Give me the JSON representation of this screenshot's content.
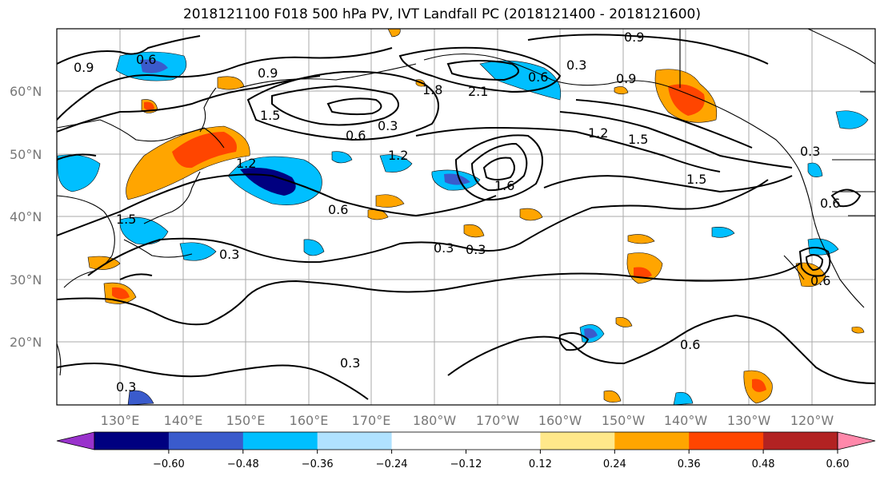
{
  "title": "2018121100 F018 500 hPa PV, IVT Landfall PC (2018121400 - 2018121600)",
  "lat_labels": [
    "60°N",
    "50°N",
    "40°N",
    "30°N",
    "20°N"
  ],
  "lon_labels": [
    "130°E",
    "140°E",
    "150°E",
    "160°E",
    "170°E",
    "180°W",
    "170°W",
    "160°W",
    "150°W",
    "140°W",
    "130°W",
    "120°W"
  ],
  "colorbar": {
    "colors": [
      "#9932cc",
      "#000080",
      "#3a5bcc",
      "#00bfff",
      "#b0e2ff",
      "#ffffff",
      "#ffffff",
      "#ffe88a",
      "#ffa500",
      "#ff4500",
      "#b22222",
      "#ff88aa"
    ],
    "ticks": [
      "−0.60",
      "−0.48",
      "−0.36",
      "−0.24",
      "−0.12",
      "0.12",
      "0.24",
      "0.36",
      "0.48",
      "0.60"
    ]
  },
  "contour_labels": [
    "0.9",
    "0.6",
    "0.9",
    "1.5",
    "0.3",
    "0.6",
    "0.9",
    "1.8",
    "2.1",
    "0.6",
    "0.3",
    "0.9",
    "1.2",
    "1.5",
    "1.2",
    "1.5",
    "0.3",
    "1.5",
    "1.2",
    "0.6",
    "1.6",
    "0.3",
    "0.3",
    "0.3",
    "0.6",
    "0.6",
    "0.3",
    "0.3",
    "0.6"
  ]
}
